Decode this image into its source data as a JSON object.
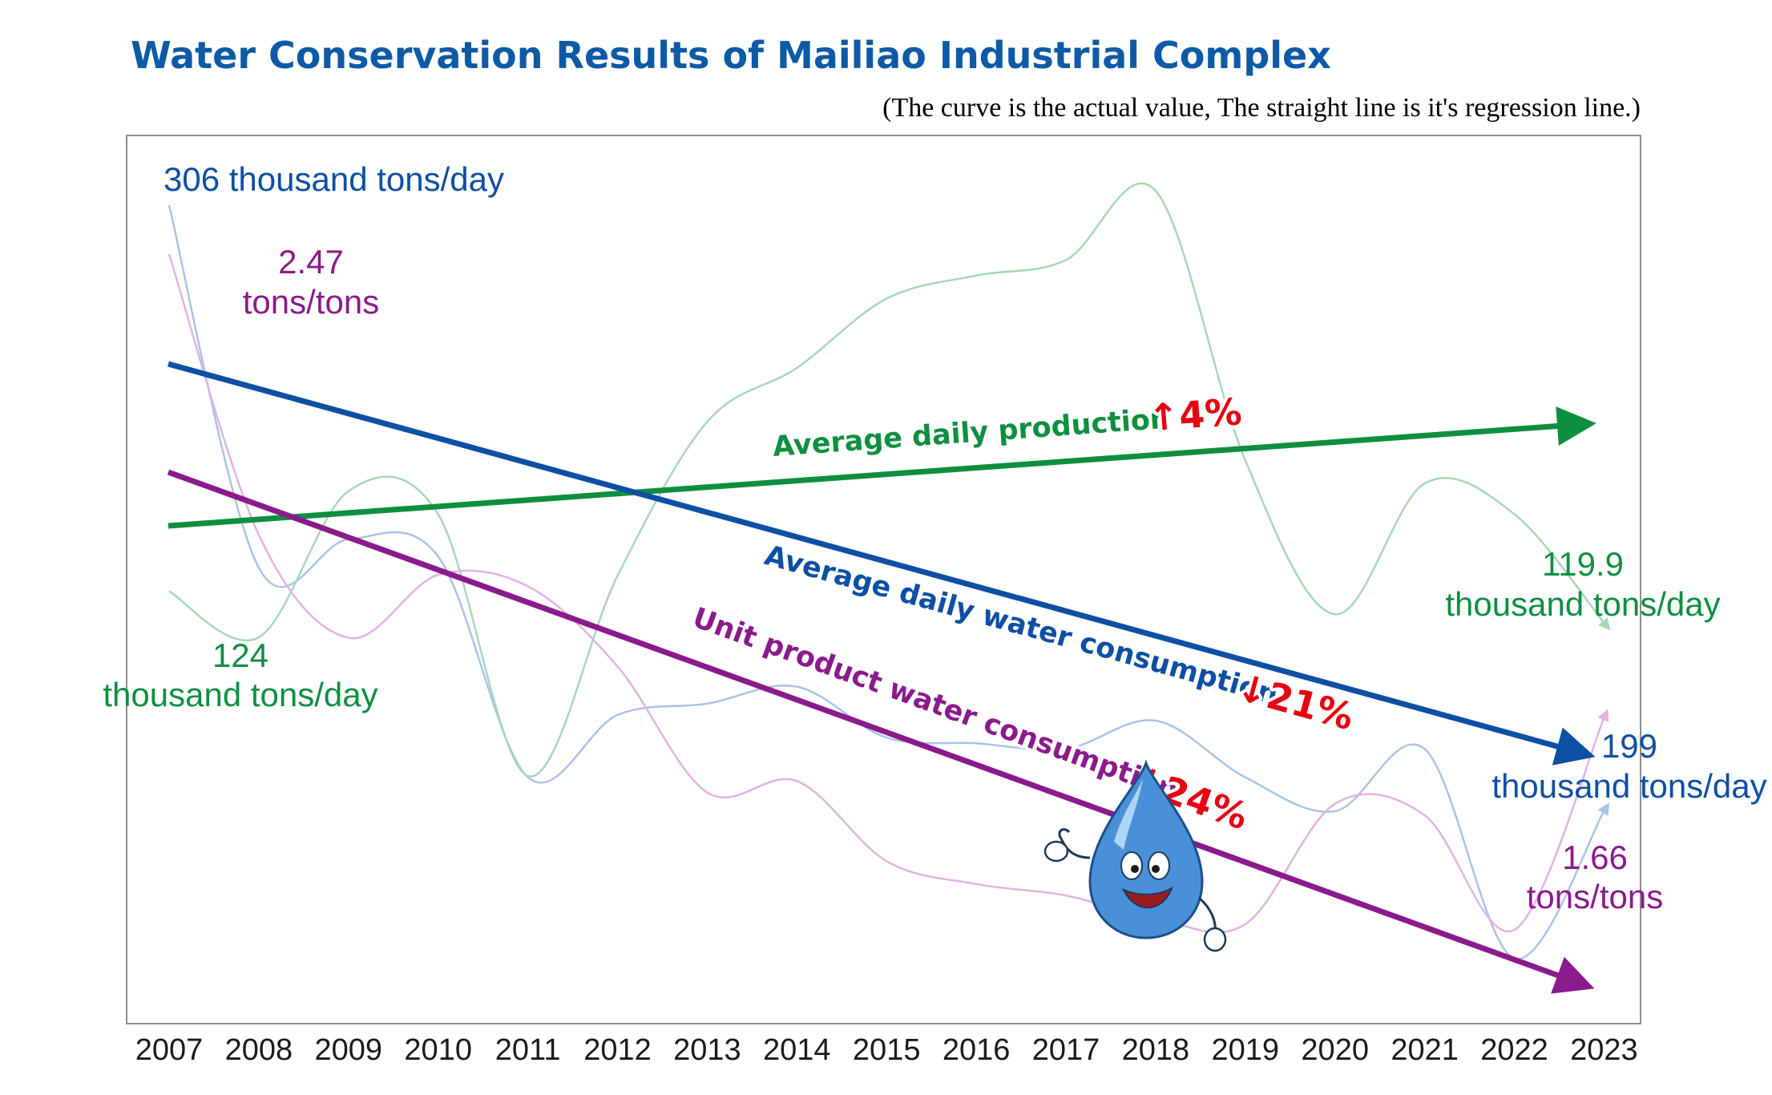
{
  "title": "Water Conservation Results of Mailiao Industrial Complex",
  "subtitle": "(The curve is the actual value, The straight line is it's regression line.)",
  "chart_data": {
    "type": "line",
    "x": [
      "2007",
      "2008",
      "2009",
      "2010",
      "2011",
      "2012",
      "2013",
      "2014",
      "2015",
      "2016",
      "2017",
      "2018",
      "2019",
      "2020",
      "2021",
      "2022",
      "2023"
    ],
    "colors": {
      "water": "#0d4fa3",
      "water_curve": "#a9c3e6",
      "production": "#0e8f40",
      "production_curve": "#a6d8b6",
      "unit": "#8b1a8b",
      "unit_curve": "#e2b2e2",
      "highlight": "#e60012"
    },
    "series": [
      {
        "key": "water",
        "name": "Average daily water consumption",
        "change_arrow": "↓",
        "change": "21%",
        "unit": "thousand tons/day",
        "values": [
          306,
          242,
          247,
          244,
          205,
          216,
          218,
          221,
          212,
          211,
          210,
          215,
          205,
          199,
          210,
          173,
          199
        ]
      },
      {
        "key": "production",
        "name": "Average daily production",
        "change_arrow": "↑",
        "change": "4%",
        "unit": "thousand tons/day",
        "values": [
          124,
          118,
          137,
          134,
          100,
          126,
          146,
          153,
          162,
          165,
          167,
          176,
          141,
          121,
          138,
          134,
          119.9
        ]
      },
      {
        "key": "unit",
        "name": "Unit product water consumption",
        "change_arrow": "↓",
        "change": "24%",
        "unit": "tons/tons",
        "values": [
          2.47,
          1.98,
          1.8,
          1.91,
          1.89,
          1.75,
          1.53,
          1.55,
          1.41,
          1.37,
          1.35,
          1.31,
          1.3,
          1.51,
          1.49,
          1.29,
          1.66
        ]
      }
    ],
    "labels": {
      "water_start": "306 thousand tons/day",
      "water_end_value": "199",
      "water_end_unit": "thousand tons/day",
      "unit_start_value": "2.47",
      "unit_start_unit": "tons/tons",
      "unit_end_value": "1.66",
      "unit_end_unit": "tons/tons",
      "prod_start_value": "124",
      "prod_start_unit": "thousand tons/day",
      "prod_end_value": "119.9",
      "prod_end_unit": "thousand tons/day"
    },
    "grid": false,
    "legend": "none"
  }
}
